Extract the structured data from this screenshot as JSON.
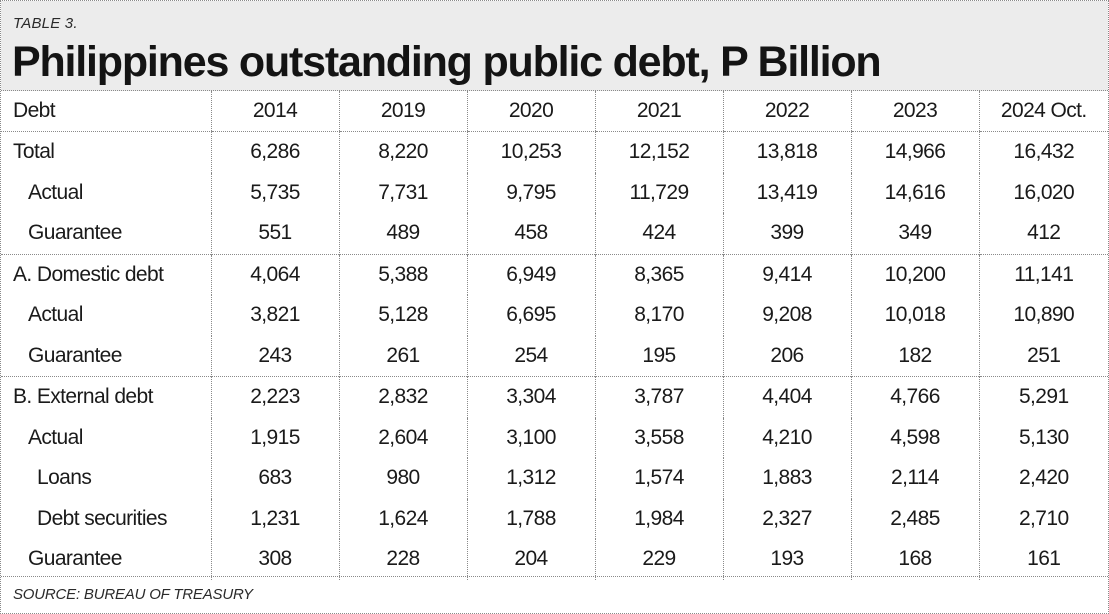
{
  "header": {
    "table_label": "TABLE 3.",
    "title": "Philippines outstanding public debt, P Billion"
  },
  "chart_data": {
    "type": "table",
    "title": "Philippines outstanding public debt, P Billion",
    "columns": [
      "Debt",
      "2014",
      "2019",
      "2020",
      "2021",
      "2022",
      "2023",
      "2024 Oct."
    ],
    "rows": [
      {
        "label": "Total",
        "values": [
          "6,286",
          "8,220",
          "10,253",
          "12,152",
          "13,818",
          "14,966",
          "16,432"
        ]
      },
      {
        "label": "Actual",
        "values": [
          "5,735",
          "7,731",
          "9,795",
          "11,729",
          "13,419",
          "14,616",
          "16,020"
        ]
      },
      {
        "label": "Guarantee",
        "values": [
          "551",
          "489",
          "458",
          "424",
          "399",
          "349",
          "412"
        ]
      },
      {
        "label": "A. Domestic debt",
        "values": [
          "4,064",
          "5,388",
          "6,949",
          "8,365",
          "9,414",
          "10,200",
          "11,141"
        ]
      },
      {
        "label": "Actual",
        "values": [
          "3,821",
          "5,128",
          "6,695",
          "8,170",
          "9,208",
          "10,018",
          "10,890"
        ]
      },
      {
        "label": "Guarantee",
        "values": [
          "243",
          "261",
          "254",
          "195",
          "206",
          "182",
          "251"
        ]
      },
      {
        "label": "B. External debt",
        "values": [
          "2,223",
          "2,832",
          "3,304",
          "3,787",
          "4,404",
          "4,766",
          "5,291"
        ]
      },
      {
        "label": "Actual",
        "values": [
          "1,915",
          "2,604",
          "3,100",
          "3,558",
          "4,210",
          "4,598",
          "5,130"
        ]
      },
      {
        "label": "Loans",
        "values": [
          "683",
          "980",
          "1,312",
          "1,574",
          "1,883",
          "2,114",
          "2,420"
        ]
      },
      {
        "label": "Debt securities",
        "values": [
          "1,231",
          "1,624",
          "1,788",
          "1,984",
          "2,327",
          "2,485",
          "2,710"
        ]
      },
      {
        "label": "Guarantee",
        "values": [
          "308",
          "228",
          "204",
          "229",
          "193",
          "168",
          "161"
        ]
      }
    ]
  },
  "footer": {
    "source": "SOURCE: BUREAU OF TREASURY"
  }
}
